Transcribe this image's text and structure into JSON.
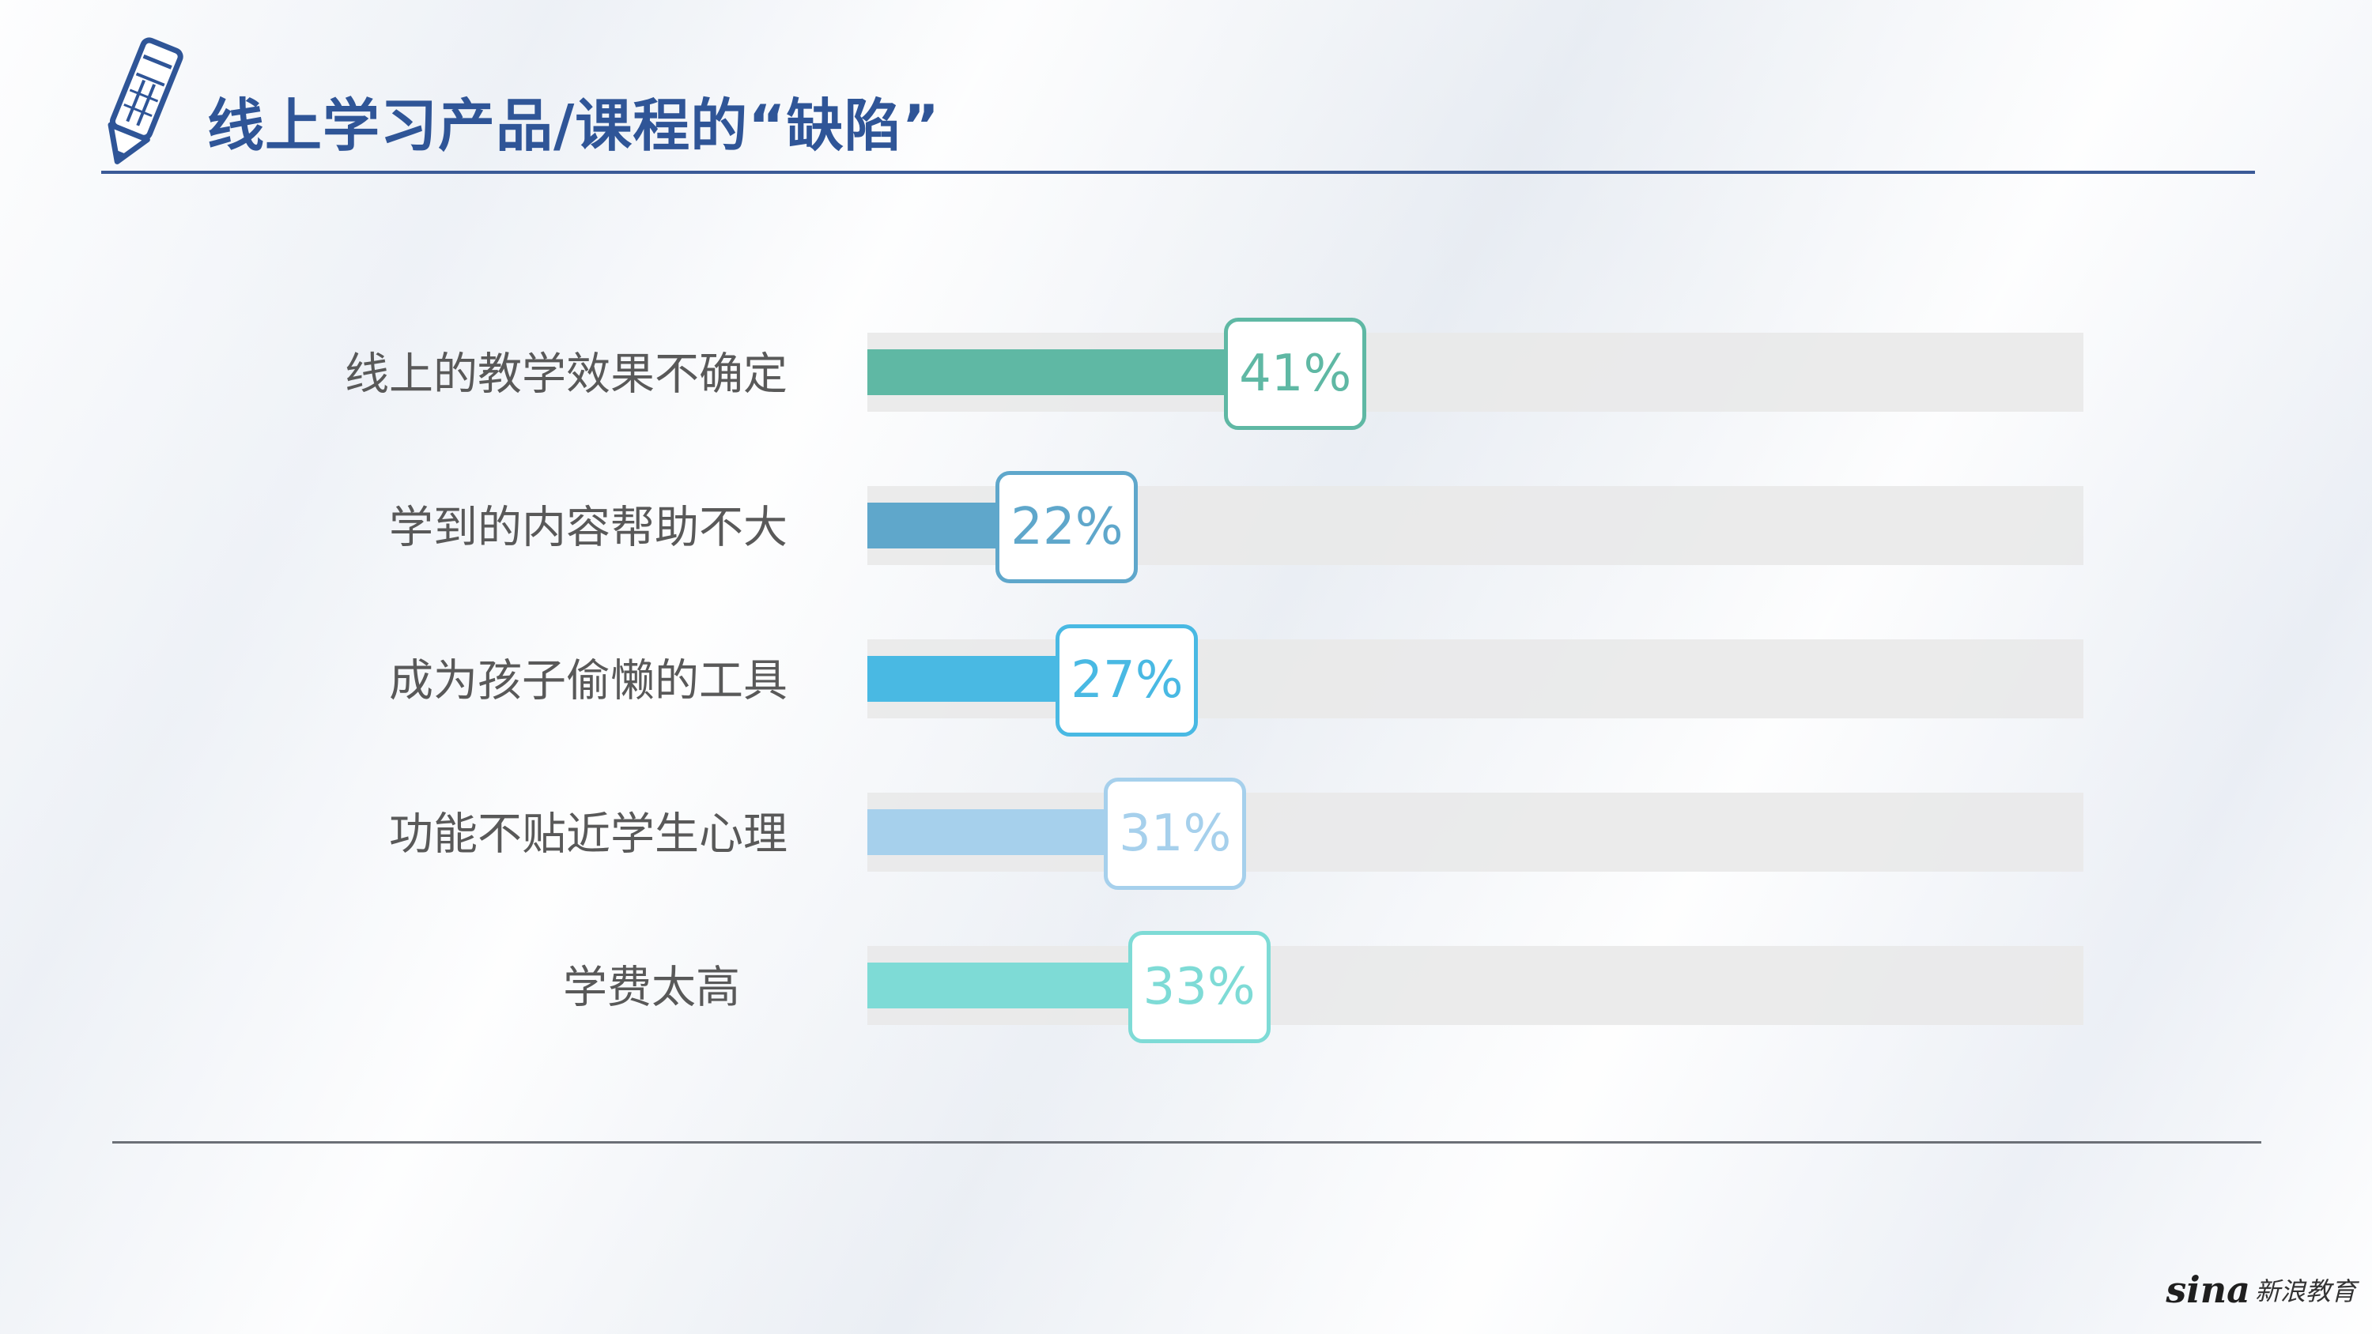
{
  "header": {
    "title": "线上学习产品/课程的“缺陷”",
    "icon": "pencil-icon"
  },
  "colors": {
    "title": "#2f5597",
    "rule": "#3a5a97",
    "track": "#e9e9e9"
  },
  "chart_data": {
    "type": "bar",
    "orientation": "horizontal",
    "categories": [
      "线上的教学效果不确定",
      "学到的内容帮助不大",
      "成为孩子偷懒的工具",
      "功能不贴近学生心理",
      "学费太高"
    ],
    "values": [
      41,
      22,
      27,
      31,
      33
    ],
    "value_labels": [
      "41%",
      "22%",
      "27%",
      "31%",
      "33%"
    ],
    "colors": [
      "#5fb8a4",
      "#5fa7cb",
      "#49b9e3",
      "#a6d0ec",
      "#7edbd6"
    ],
    "xlim": [
      0,
      100
    ],
    "grid": false,
    "legend": "none"
  },
  "footer": {
    "logo_latin": "sina",
    "logo_cn": "新浪教育"
  }
}
